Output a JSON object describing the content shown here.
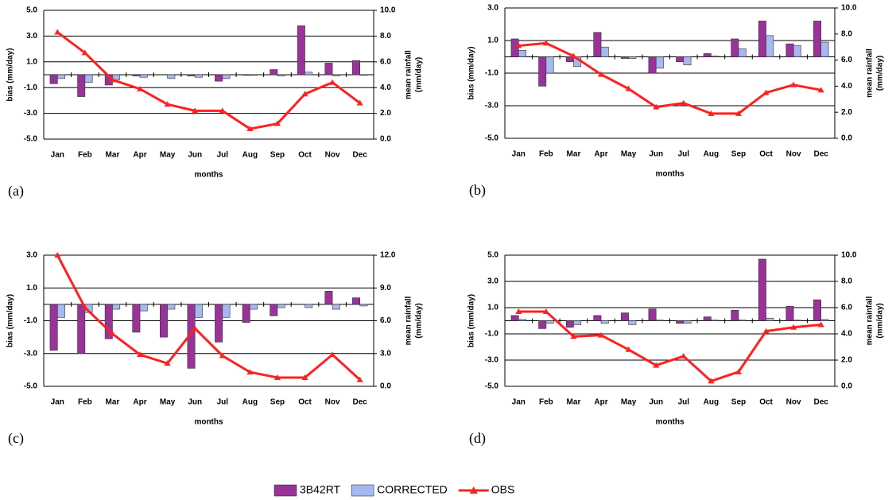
{
  "chart_data": [
    {
      "type": "bar",
      "panel_label": "(a)",
      "xlabel": "months",
      "ylabel": "bias (mm/day)",
      "y2label": [
        "mean rainfall",
        "(mm/day)"
      ],
      "categories": [
        "Jan",
        "Feb",
        "Mar",
        "Apr",
        "May",
        "Jun",
        "Jul",
        "Aug",
        "Sep",
        "Oct",
        "Nov",
        "Dec"
      ],
      "ylim": [
        -5,
        5
      ],
      "yticks": [
        {
          "value": -5,
          "label": "-5.0"
        },
        {
          "value": -3,
          "label": "-3.0"
        },
        {
          "value": -1,
          "label": "-1.0"
        },
        {
          "value": 1,
          "label": "1.0"
        },
        {
          "value": 3,
          "label": "3.0"
        },
        {
          "value": 5,
          "label": "5.0"
        }
      ],
      "y2lim": [
        0,
        10
      ],
      "y2ticks": [
        {
          "value": 0,
          "label": "0.0"
        },
        {
          "value": 2,
          "label": "2.0"
        },
        {
          "value": 4,
          "label": "4.0"
        },
        {
          "value": 6,
          "label": "6.0"
        },
        {
          "value": 8,
          "label": "8.0"
        },
        {
          "value": 10,
          "label": "10.0"
        }
      ],
      "grid": true,
      "series": [
        {
          "name": "3B42RT",
          "color": "#993399",
          "values": [
            -0.7,
            -1.7,
            -0.8,
            -0.1,
            0,
            -0.1,
            -0.5,
            -0.05,
            0.4,
            3.8,
            0.9,
            1.1
          ]
        },
        {
          "name": "CORRECTED",
          "color": "#a6b8f0",
          "values": [
            -0.3,
            -0.6,
            -0.4,
            -0.2,
            -0.3,
            -0.2,
            -0.3,
            -0.05,
            -0.1,
            0.2,
            -0.1,
            -0.05
          ]
        },
        {
          "name": "OBS",
          "color": "#ff2020",
          "type": "line",
          "axis": "y2",
          "values": [
            8.3,
            6.7,
            4.6,
            3.9,
            2.7,
            2.2,
            2.2,
            0.8,
            1.2,
            3.5,
            4.4,
            2.8
          ]
        }
      ]
    },
    {
      "type": "bar",
      "panel_label": "(b)",
      "xlabel": "months",
      "ylabel": "bias (mm/day)",
      "y2label": [
        "mean rainfall",
        "(mm/day)"
      ],
      "categories": [
        "Jan",
        "Feb",
        "Mar",
        "Apr",
        "May",
        "Jun",
        "Jul",
        "Aug",
        "Sep",
        "Oct",
        "Nov",
        "Dec"
      ],
      "ylim": [
        -5,
        3
      ],
      "yticks": [
        {
          "value": -5,
          "label": "-5.0"
        },
        {
          "value": -3,
          "label": "-3.0"
        },
        {
          "value": -1,
          "label": "-1.0"
        },
        {
          "value": 1,
          "label": "1.0"
        },
        {
          "value": 3,
          "label": "3.0"
        }
      ],
      "y2lim": [
        0,
        10
      ],
      "y2ticks": [
        {
          "value": 0,
          "label": "0.0"
        },
        {
          "value": 2,
          "label": "2.0"
        },
        {
          "value": 4,
          "label": "4.0"
        },
        {
          "value": 6,
          "label": "6.0"
        },
        {
          "value": 8,
          "label": "8.0"
        },
        {
          "value": 10,
          "label": "10.0"
        }
      ],
      "grid": true,
      "series": [
        {
          "name": "3B42RT",
          "color": "#993399",
          "values": [
            1.1,
            -1.8,
            -0.3,
            1.5,
            -0.1,
            -1.0,
            -0.3,
            0.2,
            1.1,
            2.2,
            0.8,
            2.2
          ]
        },
        {
          "name": "CORRECTED",
          "color": "#a6b8f0",
          "values": [
            0.4,
            -1.0,
            -0.6,
            0.6,
            -0.1,
            -0.7,
            -0.5,
            0.05,
            0.5,
            1.3,
            0.7,
            0.9
          ]
        },
        {
          "name": "OBS",
          "color": "#ff2020",
          "type": "line",
          "axis": "y2",
          "values": [
            7.1,
            7.3,
            6.3,
            4.9,
            3.8,
            2.4,
            2.7,
            1.9,
            1.9,
            3.5,
            4.1,
            3.7
          ]
        }
      ]
    },
    {
      "type": "bar",
      "panel_label": "(c)",
      "xlabel": "months",
      "ylabel": "bias (mm/day)",
      "y2label": [
        "mean rainfall",
        "(mm/day)"
      ],
      "categories": [
        "Jan",
        "Feb",
        "Mar",
        "Apr",
        "May",
        "Jun",
        "Jul",
        "Aug",
        "Sep",
        "Oct",
        "Nov",
        "Dec"
      ],
      "ylim": [
        -5,
        3
      ],
      "yticks": [
        {
          "value": -5,
          "label": "-5.0"
        },
        {
          "value": -3,
          "label": "-3.0"
        },
        {
          "value": -1,
          "label": "-1.0"
        },
        {
          "value": 1,
          "label": "1.0"
        },
        {
          "value": 3,
          "label": "3.0"
        }
      ],
      "y2lim": [
        0,
        12
      ],
      "y2ticks": [
        {
          "value": 0,
          "label": "0.0"
        },
        {
          "value": 3,
          "label": "3.0"
        },
        {
          "value": 6,
          "label": "6.0"
        },
        {
          "value": 9,
          "label": "9.0"
        },
        {
          "value": 12,
          "label": "12.0"
        }
      ],
      "grid": true,
      "series": [
        {
          "name": "3B42RT",
          "color": "#993399",
          "values": [
            -2.8,
            -3.0,
            -2.1,
            -1.7,
            -2.0,
            -3.9,
            -2.3,
            -1.1,
            -0.7,
            0,
            0.8,
            0.4
          ]
        },
        {
          "name": "CORRECTED",
          "color": "#a6b8f0",
          "values": [
            -0.8,
            -0.5,
            -0.3,
            -0.4,
            -0.3,
            -0.8,
            -0.8,
            -0.3,
            -0.2,
            -0.2,
            -0.3,
            -0.1
          ]
        },
        {
          "name": "OBS",
          "color": "#ff2020",
          "type": "line",
          "axis": "y2",
          "values": [
            12.0,
            7.2,
            4.8,
            2.9,
            2.1,
            5.3,
            2.8,
            1.3,
            0.8,
            0.8,
            2.9,
            0.6
          ]
        }
      ]
    },
    {
      "type": "bar",
      "panel_label": "(d)",
      "xlabel": "months",
      "ylabel": "bias (mm/day)",
      "y2label": [
        "mean rainfall",
        "(mm/day)"
      ],
      "categories": [
        "Jan",
        "Feb",
        "Mar",
        "Apr",
        "May",
        "Jun",
        "Jul",
        "Aug",
        "Sep",
        "Oct",
        "Nov",
        "Dec"
      ],
      "ylim": [
        -5,
        5
      ],
      "yticks": [
        {
          "value": -5,
          "label": "-5.0"
        },
        {
          "value": -3,
          "label": "-3.0"
        },
        {
          "value": -1,
          "label": "-1.0"
        },
        {
          "value": 1,
          "label": "1.0"
        },
        {
          "value": 3,
          "label": "3.0"
        },
        {
          "value": 5,
          "label": "5.0"
        }
      ],
      "y2lim": [
        0,
        10
      ],
      "y2ticks": [
        {
          "value": 0,
          "label": "0.0"
        },
        {
          "value": 2,
          "label": "2.0"
        },
        {
          "value": 4,
          "label": "4.0"
        },
        {
          "value": 6,
          "label": "6.0"
        },
        {
          "value": 8,
          "label": "8.0"
        },
        {
          "value": 10,
          "label": "10.0"
        }
      ],
      "grid": true,
      "series": [
        {
          "name": "3B42RT",
          "color": "#993399",
          "values": [
            0.4,
            -0.6,
            -0.5,
            0.4,
            0.6,
            0.9,
            -0.2,
            0.3,
            0.8,
            4.7,
            1.1,
            1.6
          ]
        },
        {
          "name": "CORRECTED",
          "color": "#a6b8f0",
          "values": [
            0.1,
            -0.2,
            -0.3,
            -0.2,
            -0.3,
            0.05,
            -0.2,
            0.05,
            0.05,
            0.2,
            0.05,
            0.1
          ]
        },
        {
          "name": "OBS",
          "color": "#ff2020",
          "type": "line",
          "axis": "y2",
          "values": [
            5.7,
            5.7,
            3.8,
            3.9,
            2.8,
            1.6,
            2.3,
            0.4,
            1.1,
            4.2,
            4.5,
            4.7
          ]
        }
      ]
    }
  ]
}
